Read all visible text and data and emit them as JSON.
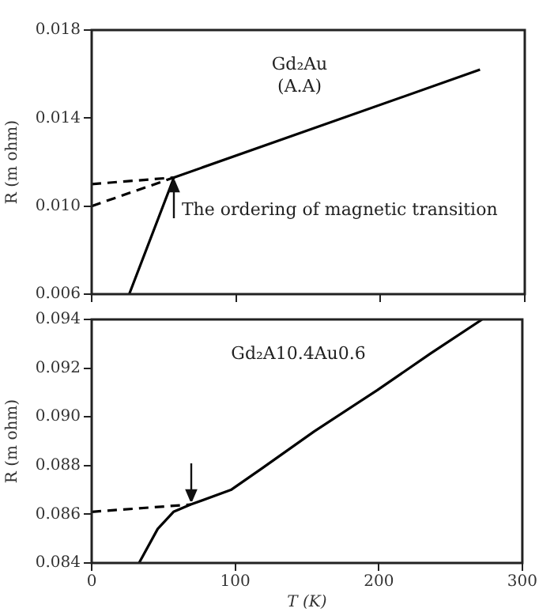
{
  "chart_data": [
    {
      "type": "line",
      "ylabel": "R (m ohm)",
      "xlim": [
        0,
        300
      ],
      "xticks": [
        {
          "value": 0,
          "label": null
        },
        {
          "value": 100,
          "label": null
        },
        {
          "value": 200,
          "label": null
        },
        {
          "value": 300,
          "label": null
        }
      ],
      "ylim": [
        0.006,
        0.018
      ],
      "yticks": [
        0.006,
        {
          "value": 0.01,
          "label": "0.010"
        },
        0.014,
        0.018
      ],
      "tick_labels": "y",
      "grid": false,
      "legend": false,
      "marker": "none",
      "annotations": [
        "Gd₂Au",
        "(A.A)",
        {
          "text": "The ordering of magnetic transition",
          "x": 58,
          "y": 0.0113
        }
      ],
      "series": [
        {
          "color": "#000000",
          "line_style": "solid",
          "x": [
            26,
            57,
            269
          ],
          "values": [
            0.006,
            0.0113,
            0.0162
          ]
        },
        {
          "color": "#000000",
          "line_style": "dashed",
          "x": [
            0,
            57
          ],
          "values": [
            0.011,
            0.0113
          ]
        },
        {
          "color": "#000000",
          "line_style": "dashed",
          "x": [
            0,
            57
          ],
          "values": [
            0.01,
            0.0113
          ]
        }
      ]
    },
    {
      "type": "line",
      "xlabel": "T (K)",
      "ylabel": "R (m ohm)",
      "xlim": [
        0,
        300
      ],
      "xticks": [
        0,
        100,
        200,
        300
      ],
      "ylim": [
        0.084,
        0.094
      ],
      "yticks": [
        0.084,
        0.086,
        0.088,
        {
          "value": 0.09,
          "label": "0.090"
        },
        0.092,
        0.094
      ],
      "grid": false,
      "legend": false,
      "marker": "none",
      "annotations": [
        "Gd₂A10.4Au0.6"
      ],
      "series": [
        {
          "color": "#000000",
          "line_style": "solid",
          "x": [
            33,
            46,
            57,
            69,
            97,
            119,
            155,
            199,
            236,
            272
          ],
          "values": [
            0.084,
            0.0854,
            0.0861,
            0.0864,
            0.087,
            0.0879,
            0.0894,
            0.0911,
            0.0926,
            0.094
          ]
        },
        {
          "color": "#000000",
          "line_style": "dashed",
          "x": [
            0,
            69
          ],
          "values": [
            0.0861,
            0.0864
          ]
        }
      ]
    }
  ]
}
